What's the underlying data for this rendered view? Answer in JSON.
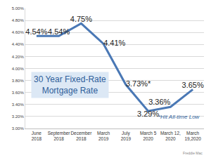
{
  "chart_data": {
    "type": "line",
    "title": "30 Year Fixed-Rate Mortgage Rate",
    "categories": [
      "June 2018",
      "September 2018",
      "December 2018",
      "March 2019",
      "July 2019",
      "March 5 2020",
      "March 12, 2020",
      "March 19,2020"
    ],
    "values": [
      4.54,
      4.54,
      4.75,
      4.41,
      3.73,
      3.29,
      3.36,
      3.65
    ],
    "value_labels": [
      "4.54%",
      "4.54%",
      "4.75%",
      "4.41%",
      "3.73%*",
      "3.29%",
      "3.36%",
      "3.65%"
    ],
    "data_labels": true,
    "color": "#4a78b5",
    "ylim": [
      3,
      5
    ],
    "yticks": [
      {
        "value": 3,
        "label": "3.00%"
      },
      {
        "value": 3.2,
        "label": "3.20%"
      },
      {
        "value": 3.4,
        "label": "3.40%"
      },
      {
        "value": 3.6,
        "label": "3.60%"
      },
      {
        "value": 3.8,
        "label": "3.80%"
      },
      {
        "value": 4,
        "label": "4.00%"
      },
      {
        "value": 4.2,
        "label": "4.20%"
      },
      {
        "value": 4.4,
        "label": "4.40%"
      },
      {
        "value": 4.6,
        "label": "4.60%"
      },
      {
        "value": 4.8,
        "label": "4.80%"
      },
      {
        "value": 5,
        "label": "5.00%"
      }
    ],
    "grid": true,
    "annotations": [
      "*Hit All-time Low"
    ],
    "source": "Freddie Mac"
  }
}
